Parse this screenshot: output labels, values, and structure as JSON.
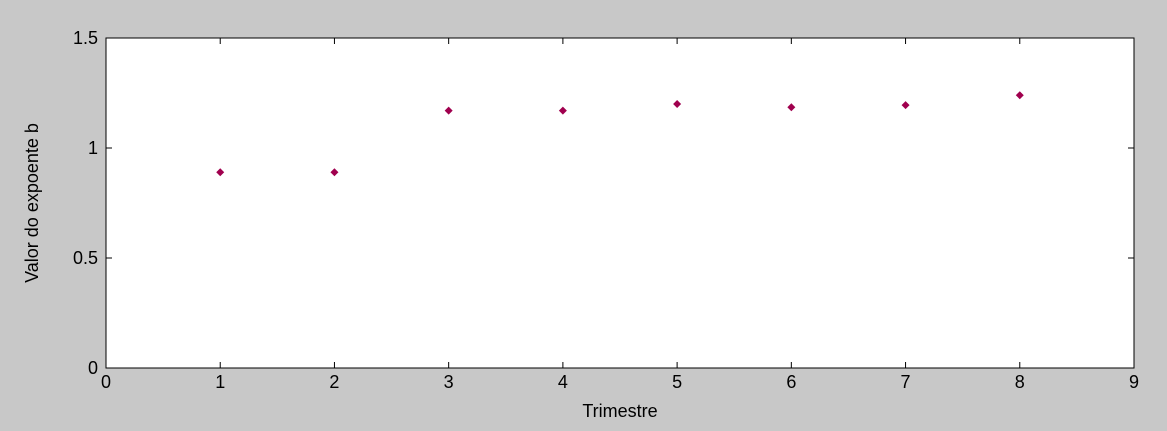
{
  "chart_data": {
    "type": "scatter",
    "title": "",
    "xlabel": "Trimestre",
    "ylabel": "Valor do expoente b",
    "xlim": [
      0,
      9
    ],
    "ylim": [
      0,
      1.5
    ],
    "xticks": [
      "0",
      "1",
      "2",
      "3",
      "4",
      "5",
      "6",
      "7",
      "8",
      "9"
    ],
    "yticks": [
      "0",
      "0.5",
      "1",
      "1.5"
    ],
    "grid": false,
    "legend": "none",
    "marker_color": "#a0004e",
    "series": [
      {
        "x": [
          1,
          2,
          3,
          4,
          5,
          6,
          7,
          8
        ],
        "y": [
          0.89,
          0.89,
          1.17,
          1.17,
          1.2,
          1.185,
          1.195,
          1.24
        ]
      }
    ]
  }
}
